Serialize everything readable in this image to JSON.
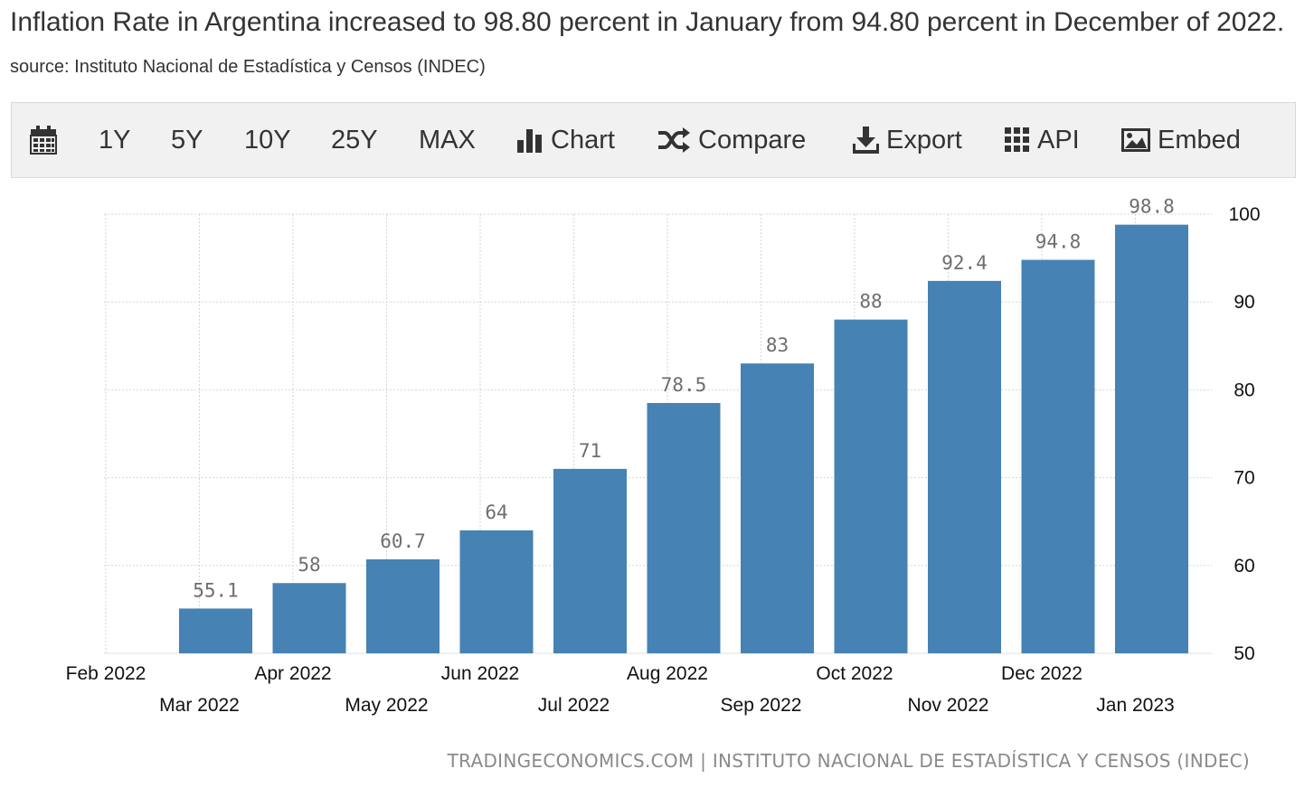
{
  "headline": {
    "title": "Inflation Rate in Argentina increased to 98.80 percent in January from 94.80 percent in December of 2022.",
    "source": "source: Instituto Nacional de Estadística y Censos (INDEC)"
  },
  "toolbar": {
    "calendar_icon": "calendar-icon",
    "range_buttons": [
      "1Y",
      "5Y",
      "10Y",
      "25Y",
      "MAX"
    ],
    "chart_label": "Chart",
    "compare_label": "Compare",
    "export_label": "Export",
    "api_label": "API",
    "embed_label": "Embed"
  },
  "chart_data": {
    "type": "bar",
    "categories": [
      "Feb 2022",
      "Mar 2022",
      "Apr 2022",
      "May 2022",
      "Jun 2022",
      "Jul 2022",
      "Aug 2022",
      "Sep 2022",
      "Oct 2022",
      "Nov 2022",
      "Dec 2022",
      "Jan 2023"
    ],
    "values": [
      null,
      55.1,
      58,
      60.7,
      64,
      71,
      78.5,
      83,
      88,
      92.4,
      94.8,
      98.8
    ],
    "value_labels": [
      "",
      "55.1",
      "58",
      "60.7",
      "64",
      "71",
      "78.5",
      "83",
      "88",
      "92.4",
      "94.8",
      "98.8"
    ],
    "ylim": [
      50,
      100
    ],
    "yticks": [
      50,
      60,
      70,
      80,
      90,
      100
    ],
    "y_axis_position": "right",
    "grid": true,
    "bar_color": "#4682b4",
    "credit": "TRADINGECONOMICS.COM | INSTITUTO NACIONAL DE ESTADÍSTICA Y CENSOS (INDEC)"
  }
}
